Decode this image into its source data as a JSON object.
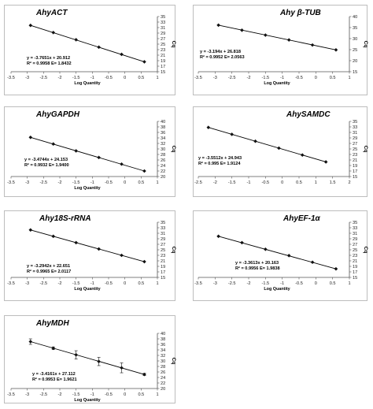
{
  "chart_data": [
    {
      "type": "scatter",
      "title": "AhyACT",
      "xlabel": "Log Quantity",
      "ylabel": "Cq",
      "xlim": [
        -3.5,
        1
      ],
      "xticks": [
        "-3.5",
        "-3",
        "-2.5",
        "-2",
        "-1.5",
        "-1",
        "-0.5",
        "0",
        "0.5",
        "1"
      ],
      "ylim": [
        15,
        35
      ],
      "yticks": [
        "15",
        "17",
        "19",
        "21",
        "23",
        "25",
        "27",
        "29",
        "31",
        "33",
        "35"
      ],
      "x": [
        -2.9,
        -2.2,
        -1.5,
        -0.8,
        -0.1,
        0.6
      ],
      "y": [
        31.8,
        29.2,
        26.6,
        23.9,
        21.3,
        18.6
      ],
      "fit": {
        "slope": -3.7651,
        "intercept": 20.912
      },
      "equation": "y = -3.7651x + 20.912",
      "stats": "R² = 0.9958 E= 1.8432",
      "error_bars": false
    },
    {
      "type": "scatter",
      "title": "Ahy β-TUB",
      "xlabel": "Log Quantity",
      "ylabel": "Cq",
      "xlim": [
        -3.5,
        1
      ],
      "xticks": [
        "-3.5",
        "-3",
        "-2.5",
        "-2",
        "-1.5",
        "-1",
        "-0.5",
        "0",
        "0.5",
        "1"
      ],
      "ylim": [
        15,
        40
      ],
      "yticks": [
        "15",
        "20",
        "25",
        "30",
        "35",
        "40"
      ],
      "x": [
        -2.9,
        -2.2,
        -1.5,
        -0.8,
        -0.1,
        0.6
      ],
      "y": [
        36.1,
        33.8,
        31.6,
        29.4,
        27.1,
        24.9
      ],
      "fit": {
        "slope": -3.194,
        "intercept": 26.818
      },
      "equation": "y = -3.194x + 26.818",
      "stats": "R² = 0.9952 E= 2.0563",
      "error_bars": false
    },
    {
      "type": "scatter",
      "title": "AhyGAPDH",
      "xlabel": "Log Quantity",
      "ylabel": "Cq",
      "xlim": [
        -3.5,
        1
      ],
      "xticks": [
        "-3.5",
        "-3",
        "-2.5",
        "-2",
        "-1.5",
        "-1",
        "-0.5",
        "0",
        "0.5",
        "1"
      ],
      "ylim": [
        20,
        40
      ],
      "yticks": [
        "20",
        "22",
        "24",
        "26",
        "28",
        "30",
        "32",
        "34",
        "36",
        "38",
        "40"
      ],
      "x": [
        -2.9,
        -2.2,
        -1.5,
        -0.8,
        -0.1,
        0.6
      ],
      "y": [
        34.2,
        31.8,
        29.3,
        26.9,
        24.5,
        22.0
      ],
      "fit": {
        "slope": -3.4744,
        "intercept": 24.153
      },
      "equation": "y = -3.4744x + 24.153",
      "stats": "R² = 0.9932 E= 1.9400",
      "error_bars": false
    },
    {
      "type": "scatter",
      "title": "AhySAMDC",
      "xlabel": "",
      "ylabel": "Cq",
      "xlim": [
        -2.5,
        2
      ],
      "xticks": [
        "-2.5",
        "-2",
        "-1.5",
        "-1",
        "-0.5",
        "0",
        "0.5",
        "1",
        "1.5",
        "2"
      ],
      "ylim": [
        15,
        35
      ],
      "yticks": [
        "15",
        "17",
        "19",
        "21",
        "23",
        "25",
        "27",
        "29",
        "31",
        "33",
        "35"
      ],
      "x": [
        -2.2,
        -1.5,
        -0.8,
        -0.1,
        0.6,
        1.3
      ],
      "y": [
        32.8,
        30.3,
        27.8,
        25.3,
        22.8,
        20.3
      ],
      "fit": {
        "slope": -3.5512,
        "intercept": 24.943
      },
      "equation": "y = -3.5512x + 24.943",
      "stats": "R² = 0.995 E= 1.9124",
      "error_bars": false
    },
    {
      "type": "scatter",
      "title": "Ahy18S-rRNA",
      "xlabel": "Log Quantity",
      "ylabel": "Cq",
      "xlim": [
        -3.5,
        1
      ],
      "xticks": [
        "-3.5",
        "-3",
        "-2.5",
        "-2",
        "-1.5",
        "-1",
        "-0.5",
        "0",
        "0.5",
        "1"
      ],
      "ylim": [
        15,
        35
      ],
      "yticks": [
        "15",
        "17",
        "19",
        "21",
        "23",
        "25",
        "27",
        "29",
        "31",
        "33",
        "35"
      ],
      "x": [
        -2.9,
        -2.2,
        -1.5,
        -0.8,
        -0.1,
        0.6
      ],
      "y": [
        32.2,
        29.9,
        27.6,
        25.3,
        23.0,
        20.7
      ],
      "fit": {
        "slope": -3.2942,
        "intercept": 22.651
      },
      "equation": "y = -3.2942x + 22.651",
      "stats": "R² = 0.9965 E= 2.0117",
      "error_bars": false
    },
    {
      "type": "scatter",
      "title": "AhyEF-1α",
      "xlabel": "Log Quantity",
      "ylabel": "Cq",
      "xlim": [
        -3.5,
        1
      ],
      "xticks": [
        "-3.5",
        "-3",
        "-2.5",
        "-2",
        "-1.5",
        "-1",
        "-0.5",
        "0",
        "0.5",
        "1"
      ],
      "ylim": [
        15,
        35
      ],
      "yticks": [
        "15",
        "17",
        "19",
        "21",
        "23",
        "25",
        "27",
        "29",
        "31",
        "33",
        "35"
      ],
      "x": [
        -2.9,
        -2.2,
        -1.5,
        -0.8,
        -0.1,
        0.6
      ],
      "y": [
        29.9,
        27.6,
        25.2,
        22.9,
        20.5,
        18.1
      ],
      "fit": {
        "slope": -3.3613,
        "intercept": 20.163
      },
      "equation": "y = -3.3613x + 20.163",
      "stats": "R² = 0.9956 E= 1.9838",
      "error_bars": false
    },
    {
      "type": "scatter",
      "title": "AhyMDH",
      "xlabel": "Log Quantity",
      "ylabel": "Cq",
      "xlim": [
        -3.5,
        1
      ],
      "xticks": [
        "-3.5",
        "-3",
        "-2.5",
        "-2",
        "-1.5",
        "-1",
        "-0.5",
        "0",
        "0.5",
        "1"
      ],
      "ylim": [
        20,
        40
      ],
      "yticks": [
        "20",
        "22",
        "24",
        "26",
        "28",
        "30",
        "32",
        "34",
        "36",
        "38",
        "40"
      ],
      "x": [
        -2.9,
        -2.2,
        -1.5,
        -0.8,
        -0.1,
        0.6
      ],
      "y": [
        37.0,
        34.6,
        32.2,
        29.8,
        27.5,
        25.1
      ],
      "y_error": [
        1.0,
        0.5,
        1.5,
        1.5,
        1.8,
        0.4
      ],
      "fit": {
        "slope": -3.4161,
        "intercept": 27.112
      },
      "equation": "y = -3.4161x + 27.112",
      "stats": "R² = 0.9953 E= 1.9621",
      "error_bars": true
    }
  ]
}
